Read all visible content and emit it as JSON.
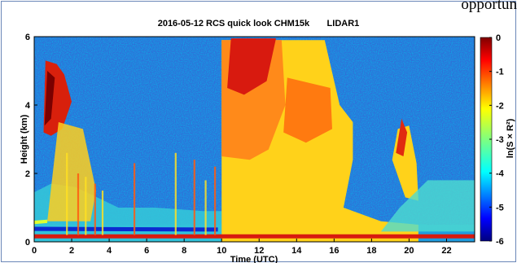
{
  "page": {
    "fragment_text": "opportun"
  },
  "chart_data": {
    "type": "heatmap",
    "title": "2016-05-12 RCS quick look CHM15k       LIDAR1",
    "xlabel": "Time (UTC)",
    "ylabel": "Height (km)",
    "xlim": [
      0,
      23.5
    ],
    "ylim": [
      0,
      6
    ],
    "x_ticks": [
      0,
      2,
      4,
      6,
      8,
      10,
      12,
      14,
      16,
      18,
      20,
      22
    ],
    "y_ticks": [
      0,
      2,
      4,
      6
    ],
    "colorbar": {
      "label": "ln(S × R²)",
      "range": [
        -6,
        0
      ],
      "ticks": [
        0,
        -1,
        -2,
        -3,
        -4,
        -5,
        -6
      ],
      "colormap": "jet"
    },
    "grid": false
  }
}
